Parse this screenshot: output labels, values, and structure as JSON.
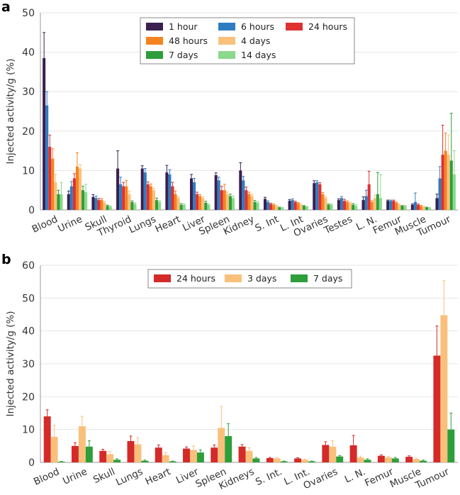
{
  "chart_data": [
    {
      "panel": "a",
      "type": "bar",
      "ylabel": "Injected activity/g (%)",
      "ylim": [
        0,
        50
      ],
      "yticks": [
        "0",
        "10",
        "20",
        "30",
        "40",
        "50"
      ],
      "categories": [
        "Blood",
        "Urine",
        "Skull",
        "Thyroid",
        "Lungs",
        "Heart",
        "Liver",
        "Spleen",
        "Kidney",
        "S. Int",
        "L. Int",
        "Ovaries",
        "Testes",
        "L. N.",
        "Femur",
        "Muscle",
        "Tumour"
      ],
      "legend_order": [
        0,
        3,
        5,
        1,
        4,
        6,
        2
      ],
      "legend_position": "top-center",
      "series": [
        {
          "name": "1 hour",
          "color": "#3a1f4f",
          "values": [
            38.5,
            4.0,
            3.3,
            10.5,
            10.5,
            9.5,
            8.0,
            8.8,
            10.0,
            2.8,
            2.3,
            6.8,
            2.5,
            2.5,
            2.3,
            1.3,
            3.0
          ],
          "errors": [
            6.5,
            0.8,
            0.6,
            4.5,
            0.7,
            1.8,
            1.0,
            0.6,
            2.0,
            0.4,
            0.3,
            0.6,
            0.3,
            0.8,
            0.2,
            0.2,
            1.0
          ]
        },
        {
          "name": "6 hours",
          "color": "#2f7cc0",
          "values": [
            26.5,
            6.0,
            3.0,
            6.5,
            9.5,
            9.0,
            7.0,
            7.5,
            7.5,
            2.0,
            2.5,
            7.0,
            3.0,
            3.5,
            2.3,
            2.0,
            8.0
          ],
          "errors": [
            3.5,
            1.2,
            0.5,
            1.8,
            1.0,
            1.2,
            1.0,
            0.8,
            1.0,
            0.3,
            0.3,
            0.4,
            0.4,
            1.5,
            0.2,
            2.3,
            3.0
          ]
        },
        {
          "name": "24 hours",
          "color": "#e03030",
          "values": [
            16.0,
            8.0,
            2.5,
            6.0,
            6.5,
            6.0,
            4.0,
            5.0,
            5.0,
            1.5,
            2.0,
            6.5,
            2.3,
            6.5,
            2.3,
            1.3,
            14.0
          ],
          "errors": [
            3.0,
            1.2,
            0.4,
            1.0,
            0.6,
            1.0,
            0.5,
            1.0,
            0.8,
            0.2,
            0.2,
            0.4,
            0.4,
            3.3,
            0.2,
            0.2,
            7.5
          ]
        },
        {
          "name": "48 hours",
          "color": "#f5831f",
          "values": [
            13.0,
            11.0,
            2.5,
            6.0,
            6.0,
            4.0,
            3.5,
            5.0,
            4.0,
            1.3,
            1.7,
            4.0,
            2.0,
            2.0,
            1.8,
            1.0,
            15.0
          ],
          "errors": [
            2.5,
            3.5,
            0.3,
            1.5,
            0.6,
            0.8,
            0.4,
            1.5,
            0.5,
            0.2,
            0.2,
            0.4,
            0.3,
            0.3,
            0.2,
            0.2,
            4.5
          ]
        },
        {
          "name": "4 days",
          "color": "#f9c07c",
          "values": [
            7.0,
            10.5,
            1.8,
            4.0,
            5.0,
            3.0,
            3.0,
            4.0,
            3.5,
            1.0,
            1.3,
            3.0,
            1.7,
            3.0,
            1.3,
            0.8,
            14.0
          ],
          "errors": [
            2.0,
            1.0,
            0.3,
            0.8,
            0.5,
            0.4,
            0.3,
            0.5,
            0.5,
            0.2,
            0.2,
            0.3,
            0.3,
            0.7,
            0.2,
            0.1,
            5.0
          ]
        },
        {
          "name": "7 days",
          "color": "#2e9e3a",
          "values": [
            4.0,
            5.0,
            1.0,
            2.0,
            2.5,
            1.3,
            1.8,
            3.5,
            2.0,
            0.6,
            1.0,
            1.3,
            1.3,
            4.0,
            1.0,
            0.6,
            12.5
          ],
          "errors": [
            1.0,
            1.0,
            0.2,
            0.3,
            0.5,
            0.3,
            0.4,
            0.5,
            0.4,
            0.1,
            0.1,
            0.2,
            0.3,
            5.5,
            0.1,
            0.1,
            12.0
          ]
        },
        {
          "name": "14 days",
          "color": "#8cd88c",
          "values": [
            4.0,
            4.5,
            0.8,
            1.5,
            2.0,
            1.3,
            1.3,
            3.0,
            1.8,
            0.5,
            0.8,
            1.3,
            1.0,
            3.0,
            1.0,
            0.5,
            9.0
          ],
          "errors": [
            3.0,
            2.0,
            0.2,
            0.3,
            0.3,
            0.2,
            0.2,
            0.5,
            0.3,
            0.1,
            0.1,
            0.2,
            0.3,
            6.0,
            0.1,
            0.1,
            6.0
          ]
        }
      ]
    },
    {
      "panel": "b",
      "type": "bar",
      "ylabel": "Injected activity/g (%)",
      "ylim": [
        0,
        60
      ],
      "yticks": [
        "0",
        "10",
        "20",
        "30",
        "40",
        "50",
        "60"
      ],
      "categories": [
        "Blood",
        "Urine",
        "Skull",
        "Lungs",
        "Heart",
        "Liver",
        "Spleen",
        "Kidneys",
        "S. Int.",
        "L. Int.",
        "Ovaries",
        "L. N.",
        "Femur",
        "Muscle",
        "Tumour"
      ],
      "legend_order": [
        0,
        1,
        2
      ],
      "legend_position": "top-center",
      "series": [
        {
          "name": "24 hours",
          "color": "#d42a2a",
          "values": [
            14.0,
            5.0,
            3.5,
            6.5,
            4.5,
            4.2,
            4.5,
            4.8,
            1.3,
            1.2,
            5.3,
            5.2,
            2.0,
            1.7,
            32.5
          ],
          "errors": [
            2.0,
            1.0,
            0.5,
            1.5,
            0.8,
            0.5,
            0.8,
            0.6,
            0.2,
            0.2,
            1.0,
            3.0,
            0.3,
            0.3,
            9.0
          ]
        },
        {
          "name": "3 days",
          "color": "#f9c07c",
          "values": [
            7.8,
            11.0,
            2.5,
            5.5,
            2.2,
            3.8,
            10.5,
            3.5,
            1.2,
            0.8,
            4.8,
            1.5,
            1.5,
            1.0,
            44.8
          ],
          "errors": [
            3.5,
            3.0,
            0.8,
            2.0,
            0.8,
            1.2,
            6.5,
            1.0,
            0.3,
            0.2,
            1.8,
            0.4,
            0.3,
            0.3,
            10.5
          ]
        },
        {
          "name": "7 days",
          "color": "#2e9e3a",
          "values": [
            0.2,
            4.8,
            0.8,
            0.5,
            0.3,
            3.0,
            8.0,
            1.2,
            0.3,
            0.3,
            1.8,
            0.8,
            1.2,
            0.5,
            10.0
          ],
          "errors": [
            0.1,
            1.8,
            0.3,
            0.2,
            0.1,
            0.8,
            3.8,
            0.3,
            0.1,
            0.1,
            0.3,
            0.3,
            0.3,
            0.2,
            5.0
          ]
        }
      ]
    }
  ]
}
